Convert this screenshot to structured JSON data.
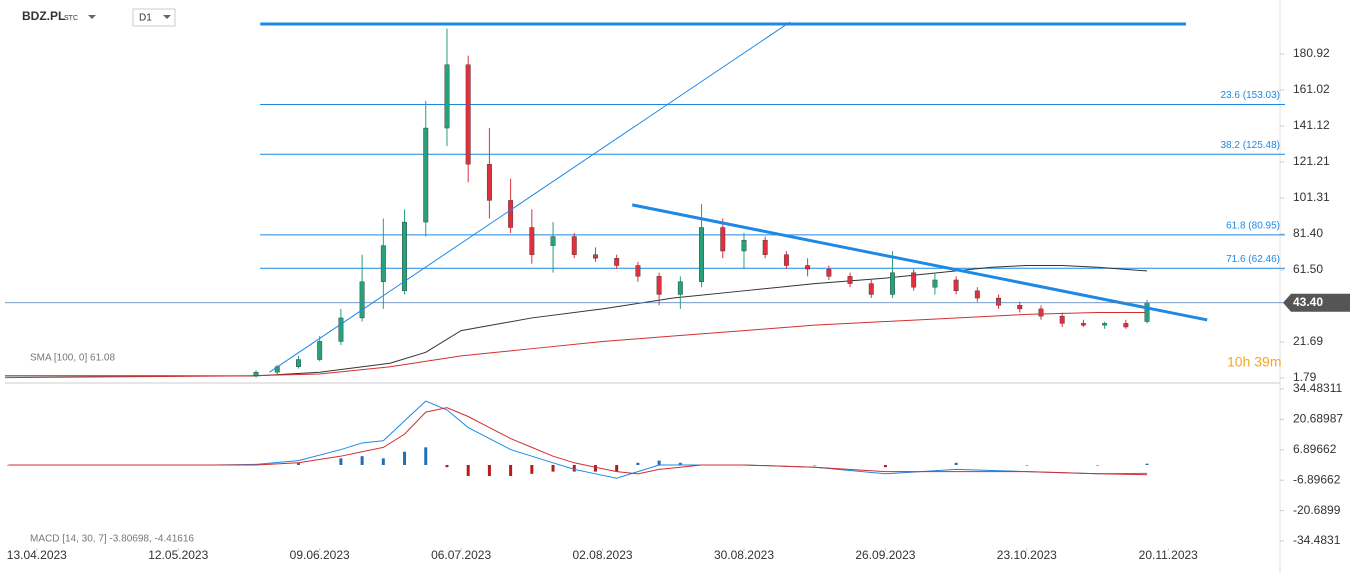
{
  "header": {
    "symbol": "BDZ.PL",
    "exchange": "STC",
    "interval": "D1",
    "timer": "10h 39m"
  },
  "chart_data": [
    {
      "type": "candlestick",
      "x": [
        31,
        34,
        37,
        40,
        43,
        46,
        49,
        52,
        55,
        58,
        61,
        64,
        67,
        70,
        73,
        76,
        79,
        82,
        85,
        88,
        91,
        94,
        97,
        100,
        103,
        106,
        109,
        112,
        115,
        118,
        121,
        124,
        127,
        130,
        133,
        136,
        139,
        142,
        145,
        148,
        151,
        154,
        157
      ],
      "open": [
        3,
        5,
        8,
        12,
        22,
        35,
        55,
        50,
        88,
        140,
        175,
        120,
        100,
        85,
        75,
        80,
        70,
        68,
        64,
        58,
        48,
        55,
        85,
        72,
        78,
        70,
        64,
        62,
        58,
        54,
        48,
        60,
        52,
        56,
        50,
        46,
        42,
        40,
        36,
        32,
        31,
        32,
        33
      ],
      "high": [
        6,
        9,
        14,
        25,
        40,
        70,
        90,
        95,
        155,
        195,
        180,
        140,
        112,
        95,
        88,
        82,
        74,
        70,
        66,
        60,
        58,
        98,
        90,
        82,
        80,
        72,
        68,
        64,
        60,
        56,
        72,
        62,
        60,
        58,
        52,
        48,
        44,
        42,
        38,
        34,
        33,
        34,
        45
      ],
      "low": [
        2,
        4,
        7,
        11,
        20,
        33,
        40,
        48,
        80,
        130,
        110,
        90,
        82,
        65,
        60,
        68,
        66,
        62,
        55,
        42,
        40,
        52,
        68,
        62,
        68,
        62,
        58,
        56,
        52,
        46,
        46,
        50,
        48,
        48,
        44,
        40,
        38,
        34,
        30,
        30,
        29,
        29,
        32
      ],
      "close": [
        5,
        8,
        12,
        22,
        35,
        55,
        75,
        88,
        140,
        175,
        120,
        100,
        85,
        70,
        80,
        70,
        68,
        64,
        58,
        48,
        55,
        85,
        72,
        78,
        70,
        64,
        62,
        58,
        54,
        48,
        60,
        52,
        56,
        50,
        46,
        42,
        40,
        36,
        32,
        31,
        32,
        30,
        43.4
      ],
      "up_color": "#26a17b",
      "down_color": "#e0303d",
      "xlim": [
        -4.5,
        175.8
      ],
      "xticks": [
        {
          "value": 0,
          "label": "13.04.2023"
        },
        {
          "value": 20,
          "label": "12.05.2023"
        },
        {
          "value": 40,
          "label": "09.06.2023"
        },
        {
          "value": 60,
          "label": "06.07.2023"
        },
        {
          "value": 80,
          "label": "02.08.2023"
        },
        {
          "value": 100,
          "label": "30.08.2023"
        },
        {
          "value": 120,
          "label": "26.09.2023"
        },
        {
          "value": 140,
          "label": "23.10.2023"
        },
        {
          "value": 160,
          "label": "20.11.2023"
        }
      ],
      "ylim": [
        -0.42,
        210.8
      ],
      "yticks": [
        1.79,
        21.69,
        {
          "value": 61.5,
          "label": "61.50"
        },
        {
          "value": 81.4,
          "label": "81.40"
        },
        101.31,
        121.21,
        141.12,
        161.02,
        180.92
      ],
      "indicators": [
        {
          "name": "SMA [100, 0] 61.08",
          "color": "#333333",
          "x": [
            -4.5,
            31,
            40,
            50,
            55,
            60,
            70,
            80,
            90,
            100,
            110,
            120,
            130,
            135,
            140,
            145,
            150,
            157
          ],
          "values": [
            3,
            3,
            5,
            10,
            16,
            28,
            35,
            40,
            46,
            50,
            54,
            57,
            61,
            63,
            64,
            64,
            63,
            61
          ]
        },
        {
          "color": "#d32f2f",
          "x": [
            -4.5,
            30,
            40,
            50,
            60,
            70,
            80,
            90,
            100,
            110,
            120,
            130,
            140,
            150,
            157
          ],
          "values": [
            2,
            3,
            4,
            8,
            14,
            18,
            22,
            25,
            28,
            31,
            33,
            35,
            37,
            38,
            38
          ]
        }
      ],
      "levels": [
        {
          "value": 153.03,
          "label": "23.6 (153.03)"
        },
        {
          "value": 125.48,
          "label": "38.2 (125.48)"
        },
        {
          "value": 80.95,
          "label": "61.8 (80.95)"
        },
        {
          "value": 62.46,
          "label": "71.6 (62.46)"
        }
      ],
      "level_color": "#1e88e5",
      "trendlines": [
        {
          "x": [
            31.6,
            162.5
          ],
          "y": [
            197.5,
            197.5
          ],
          "width": 3
        },
        {
          "x": [
            32.9,
            106.5
          ],
          "y": [
            5,
            198.6
          ],
          "width": 1
        },
        {
          "x": [
            84.2,
            165.5
          ],
          "y": [
            97.5,
            33.9
          ],
          "width": 3
        }
      ],
      "last_price": {
        "value": 43.4,
        "label": "43.40"
      }
    },
    {
      "type": "macd",
      "legend": "MACD [14, 30, 7] -3.80698, -4.41616",
      "x": [
        -4,
        10,
        25,
        31,
        37,
        43,
        46,
        49,
        52,
        55,
        58,
        61,
        64,
        67,
        70,
        73,
        76,
        79,
        82,
        85,
        88,
        91,
        94,
        100,
        110,
        120,
        130,
        140,
        150,
        157
      ],
      "series": [
        {
          "color": "#1e88e5",
          "values": [
            0,
            0,
            0,
            0.3,
            2,
            7,
            10,
            11,
            20,
            29,
            25,
            17,
            12,
            7,
            4,
            1,
            -2,
            -4,
            -6,
            -3,
            0,
            0,
            0,
            0,
            -1,
            -4,
            -2,
            -3,
            -4,
            -3.8
          ]
        },
        {
          "color": "#d32f2f",
          "values": [
            0,
            0,
            0,
            0,
            1,
            4,
            6,
            8,
            14,
            24,
            26,
            22,
            17,
            12,
            8,
            4,
            1,
            -1,
            -3,
            -4,
            -2,
            -1,
            0,
            0,
            -1,
            -3,
            -3,
            -3,
            -4,
            -4.4
          ]
        }
      ],
      "histogram": [
        0,
        0,
        0,
        0.3,
        1,
        3,
        4,
        3,
        6,
        8,
        -1,
        -5,
        -5,
        -5,
        -4,
        -3,
        -3,
        -3,
        -3,
        1,
        2,
        1,
        0,
        0,
        0,
        -1,
        1,
        0,
        0,
        0.6
      ],
      "xlim": [
        -4.5,
        175.8
      ],
      "ylim": [
        -38.57,
        36.75
      ],
      "yticks": [
        34.48311,
        20.68987,
        6.89662,
        -6.89662,
        -20.6899,
        -34.4831
      ]
    }
  ]
}
